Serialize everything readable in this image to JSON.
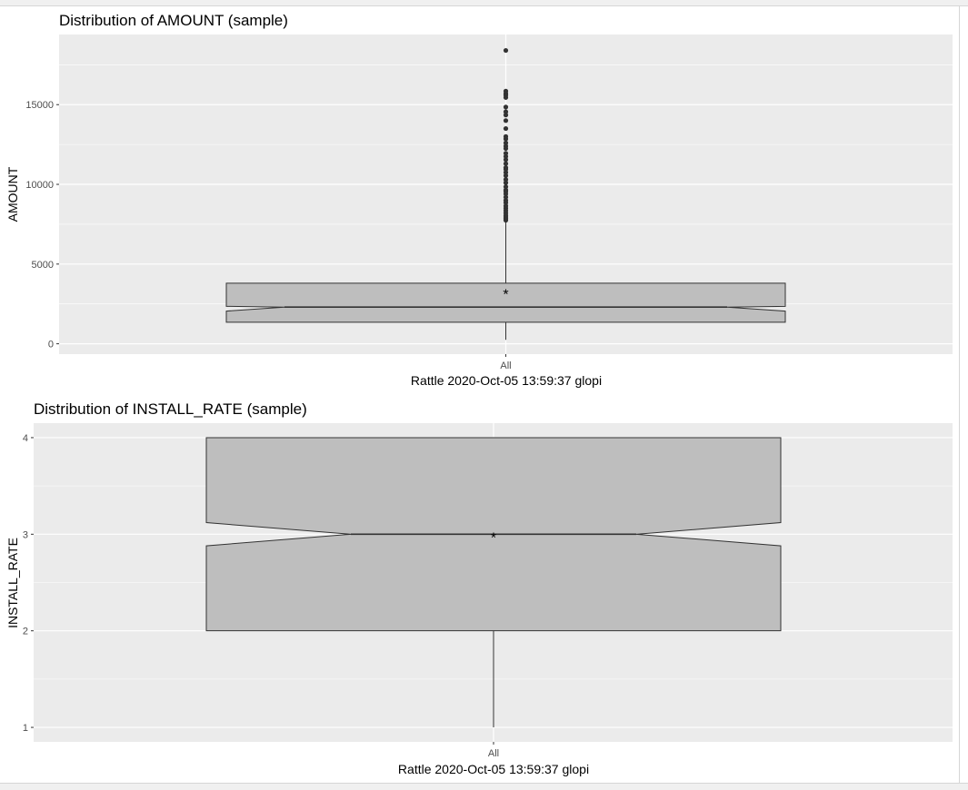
{
  "chart_data": [
    {
      "type": "boxplot",
      "title": "Distribution of AMOUNT (sample)",
      "ylabel": "AMOUNT",
      "xlabel": "Rattle 2020-Oct-05 13:59:37 glopi",
      "categories": [
        "All"
      ],
      "yticks": [
        0,
        5000,
        10000,
        15000
      ],
      "ylim": [
        -650,
        19400
      ],
      "notch": true,
      "box": {
        "min": 250,
        "q1": 1350,
        "median": 2300,
        "q3": 3800,
        "whisker_high": 7700,
        "mean": 3200,
        "notch_low": 2050,
        "notch_high": 2350
      },
      "outliers": [
        7750,
        7850,
        7950,
        8050,
        8200,
        8350,
        8500,
        8650,
        8850,
        9000,
        9200,
        9400,
        9550,
        9650,
        9850,
        10100,
        10300,
        10550,
        10750,
        10950,
        11050,
        11300,
        11550,
        11750,
        11950,
        12250,
        12400,
        12600,
        12850,
        13000,
        13500,
        14000,
        14350,
        14550,
        14850,
        15450,
        15600,
        15700,
        15850,
        18400
      ]
    },
    {
      "type": "boxplot",
      "title": "Distribution of INSTALL_RATE (sample)",
      "ylabel": "INSTALL_RATE",
      "xlabel": "Rattle 2020-Oct-05 13:59:37 glopi",
      "categories": [
        "All"
      ],
      "yticks": [
        1,
        2,
        3,
        4
      ],
      "ylim": [
        0.85,
        4.15
      ],
      "notch": true,
      "box": {
        "min": 1,
        "q1": 2,
        "median": 3,
        "q3": 4,
        "whisker_high": 4,
        "mean": 2.98,
        "notch_low": 2.88,
        "notch_high": 3.12
      },
      "outliers": []
    }
  ],
  "colors": {
    "panel_bg": "#ebebeb",
    "grid": "#ffffff",
    "box_fill": "#bebebe",
    "box_stroke": "#333333",
    "point": "#333333",
    "tick_text": "#4d4d4d"
  }
}
